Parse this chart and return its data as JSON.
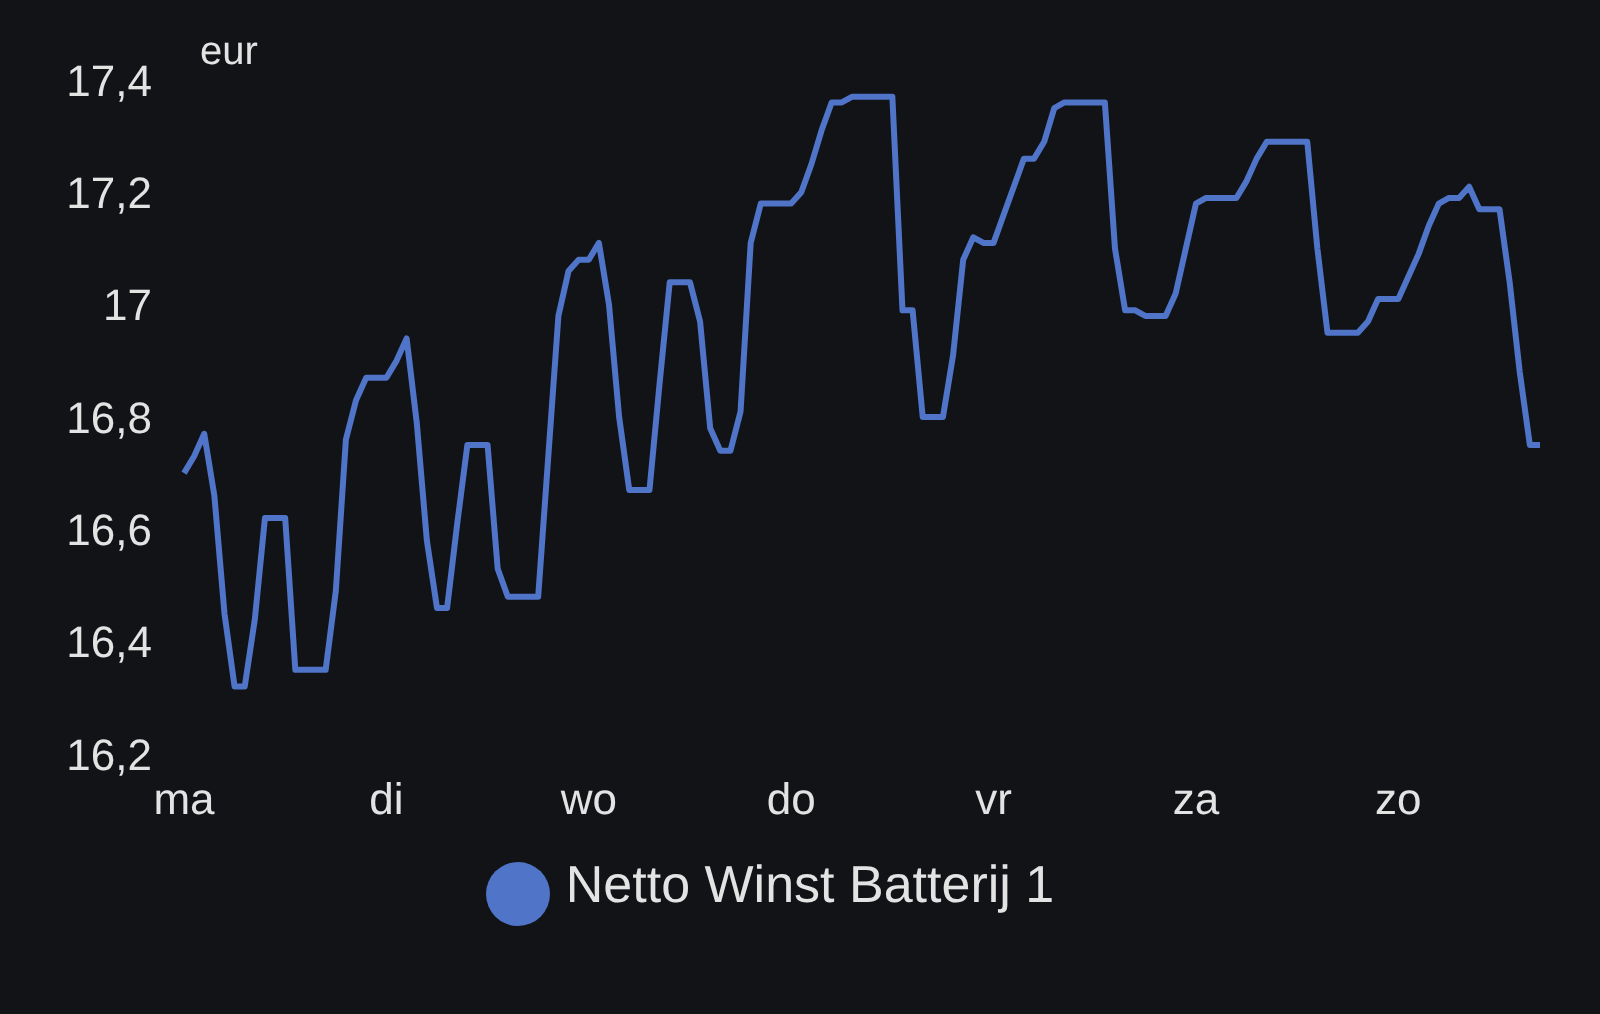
{
  "chart_data": {
    "type": "line",
    "ylabel": "eur",
    "categories": [
      "ma",
      null,
      null,
      null,
      null,
      null,
      null,
      null,
      null,
      null,
      null,
      null,
      null,
      null,
      null,
      null,
      null,
      null,
      null,
      null,
      "di",
      null,
      null,
      null,
      null,
      null,
      null,
      null,
      null,
      null,
      null,
      null,
      null,
      null,
      null,
      null,
      null,
      null,
      null,
      null,
      "wo",
      null,
      null,
      null,
      null,
      null,
      null,
      null,
      null,
      null,
      null,
      null,
      null,
      null,
      null,
      null,
      null,
      null,
      null,
      null,
      "do",
      null,
      null,
      null,
      null,
      null,
      null,
      null,
      null,
      null,
      null,
      null,
      null,
      null,
      null,
      null,
      null,
      null,
      null,
      null,
      "vr",
      null,
      null,
      null,
      null,
      null,
      null,
      null,
      null,
      null,
      null,
      null,
      null,
      null,
      null,
      null,
      null,
      null,
      null,
      null,
      "za",
      null,
      null,
      null,
      null,
      null,
      null,
      null,
      null,
      null,
      null,
      null,
      null,
      null,
      null,
      null,
      null,
      null,
      null,
      null,
      "zo",
      null,
      null,
      null,
      null,
      null,
      null,
      null,
      null,
      null,
      null,
      null,
      null,
      null,
      null
    ],
    "series": [
      {
        "name": "Netto Winst Batterij 1",
        "color": "#4f74c8",
        "values": [
          16.7,
          16.73,
          16.77,
          16.66,
          16.45,
          16.32,
          16.32,
          16.44,
          16.62,
          16.62,
          16.62,
          16.35,
          16.35,
          16.35,
          16.35,
          16.49,
          16.76,
          16.83,
          16.87,
          16.87,
          16.87,
          16.9,
          16.94,
          16.79,
          16.58,
          16.46,
          16.46,
          16.61,
          16.75,
          16.75,
          16.75,
          16.53,
          16.48,
          16.48,
          16.48,
          16.48,
          16.73,
          16.98,
          17.06,
          17.08,
          17.08,
          17.11,
          17.0,
          16.8,
          16.67,
          16.67,
          16.67,
          16.86,
          17.04,
          17.04,
          17.04,
          16.97,
          16.78,
          16.74,
          16.74,
          16.81,
          17.11,
          17.18,
          17.18,
          17.18,
          17.18,
          17.2,
          17.25,
          17.31,
          17.36,
          17.36,
          17.37,
          17.37,
          17.37,
          17.37,
          17.37,
          16.99,
          16.99,
          16.8,
          16.8,
          16.8,
          16.91,
          17.08,
          17.12,
          17.11,
          17.11,
          17.16,
          17.21,
          17.26,
          17.26,
          17.29,
          17.35,
          17.36,
          17.36,
          17.36,
          17.36,
          17.36,
          17.1,
          16.99,
          16.99,
          16.98,
          16.98,
          16.98,
          17.02,
          17.1,
          17.18,
          17.19,
          17.19,
          17.19,
          17.19,
          17.22,
          17.26,
          17.29,
          17.29,
          17.29,
          17.29,
          17.29,
          17.1,
          16.95,
          16.95,
          16.95,
          16.95,
          16.97,
          17.01,
          17.01,
          17.01,
          17.05,
          17.09,
          17.14,
          17.18,
          17.19,
          17.19,
          17.21,
          17.17,
          17.17,
          17.17,
          17.04,
          16.88,
          16.75,
          16.75
        ]
      }
    ],
    "ylim": [
      16.2,
      17.4
    ],
    "yticks": [
      {
        "value": 16.2,
        "label": "16,2"
      },
      {
        "value": 16.4,
        "label": "16,4"
      },
      {
        "value": 16.6,
        "label": "16,6"
      },
      {
        "value": 16.8,
        "label": "16,8"
      },
      {
        "value": 17,
        "label": "17"
      },
      {
        "value": 17.2,
        "label": "17,2"
      },
      {
        "value": 17.4,
        "label": "17,4"
      }
    ],
    "grid": false,
    "legend": "bottom",
    "marker": "none",
    "line_style": "solid"
  }
}
